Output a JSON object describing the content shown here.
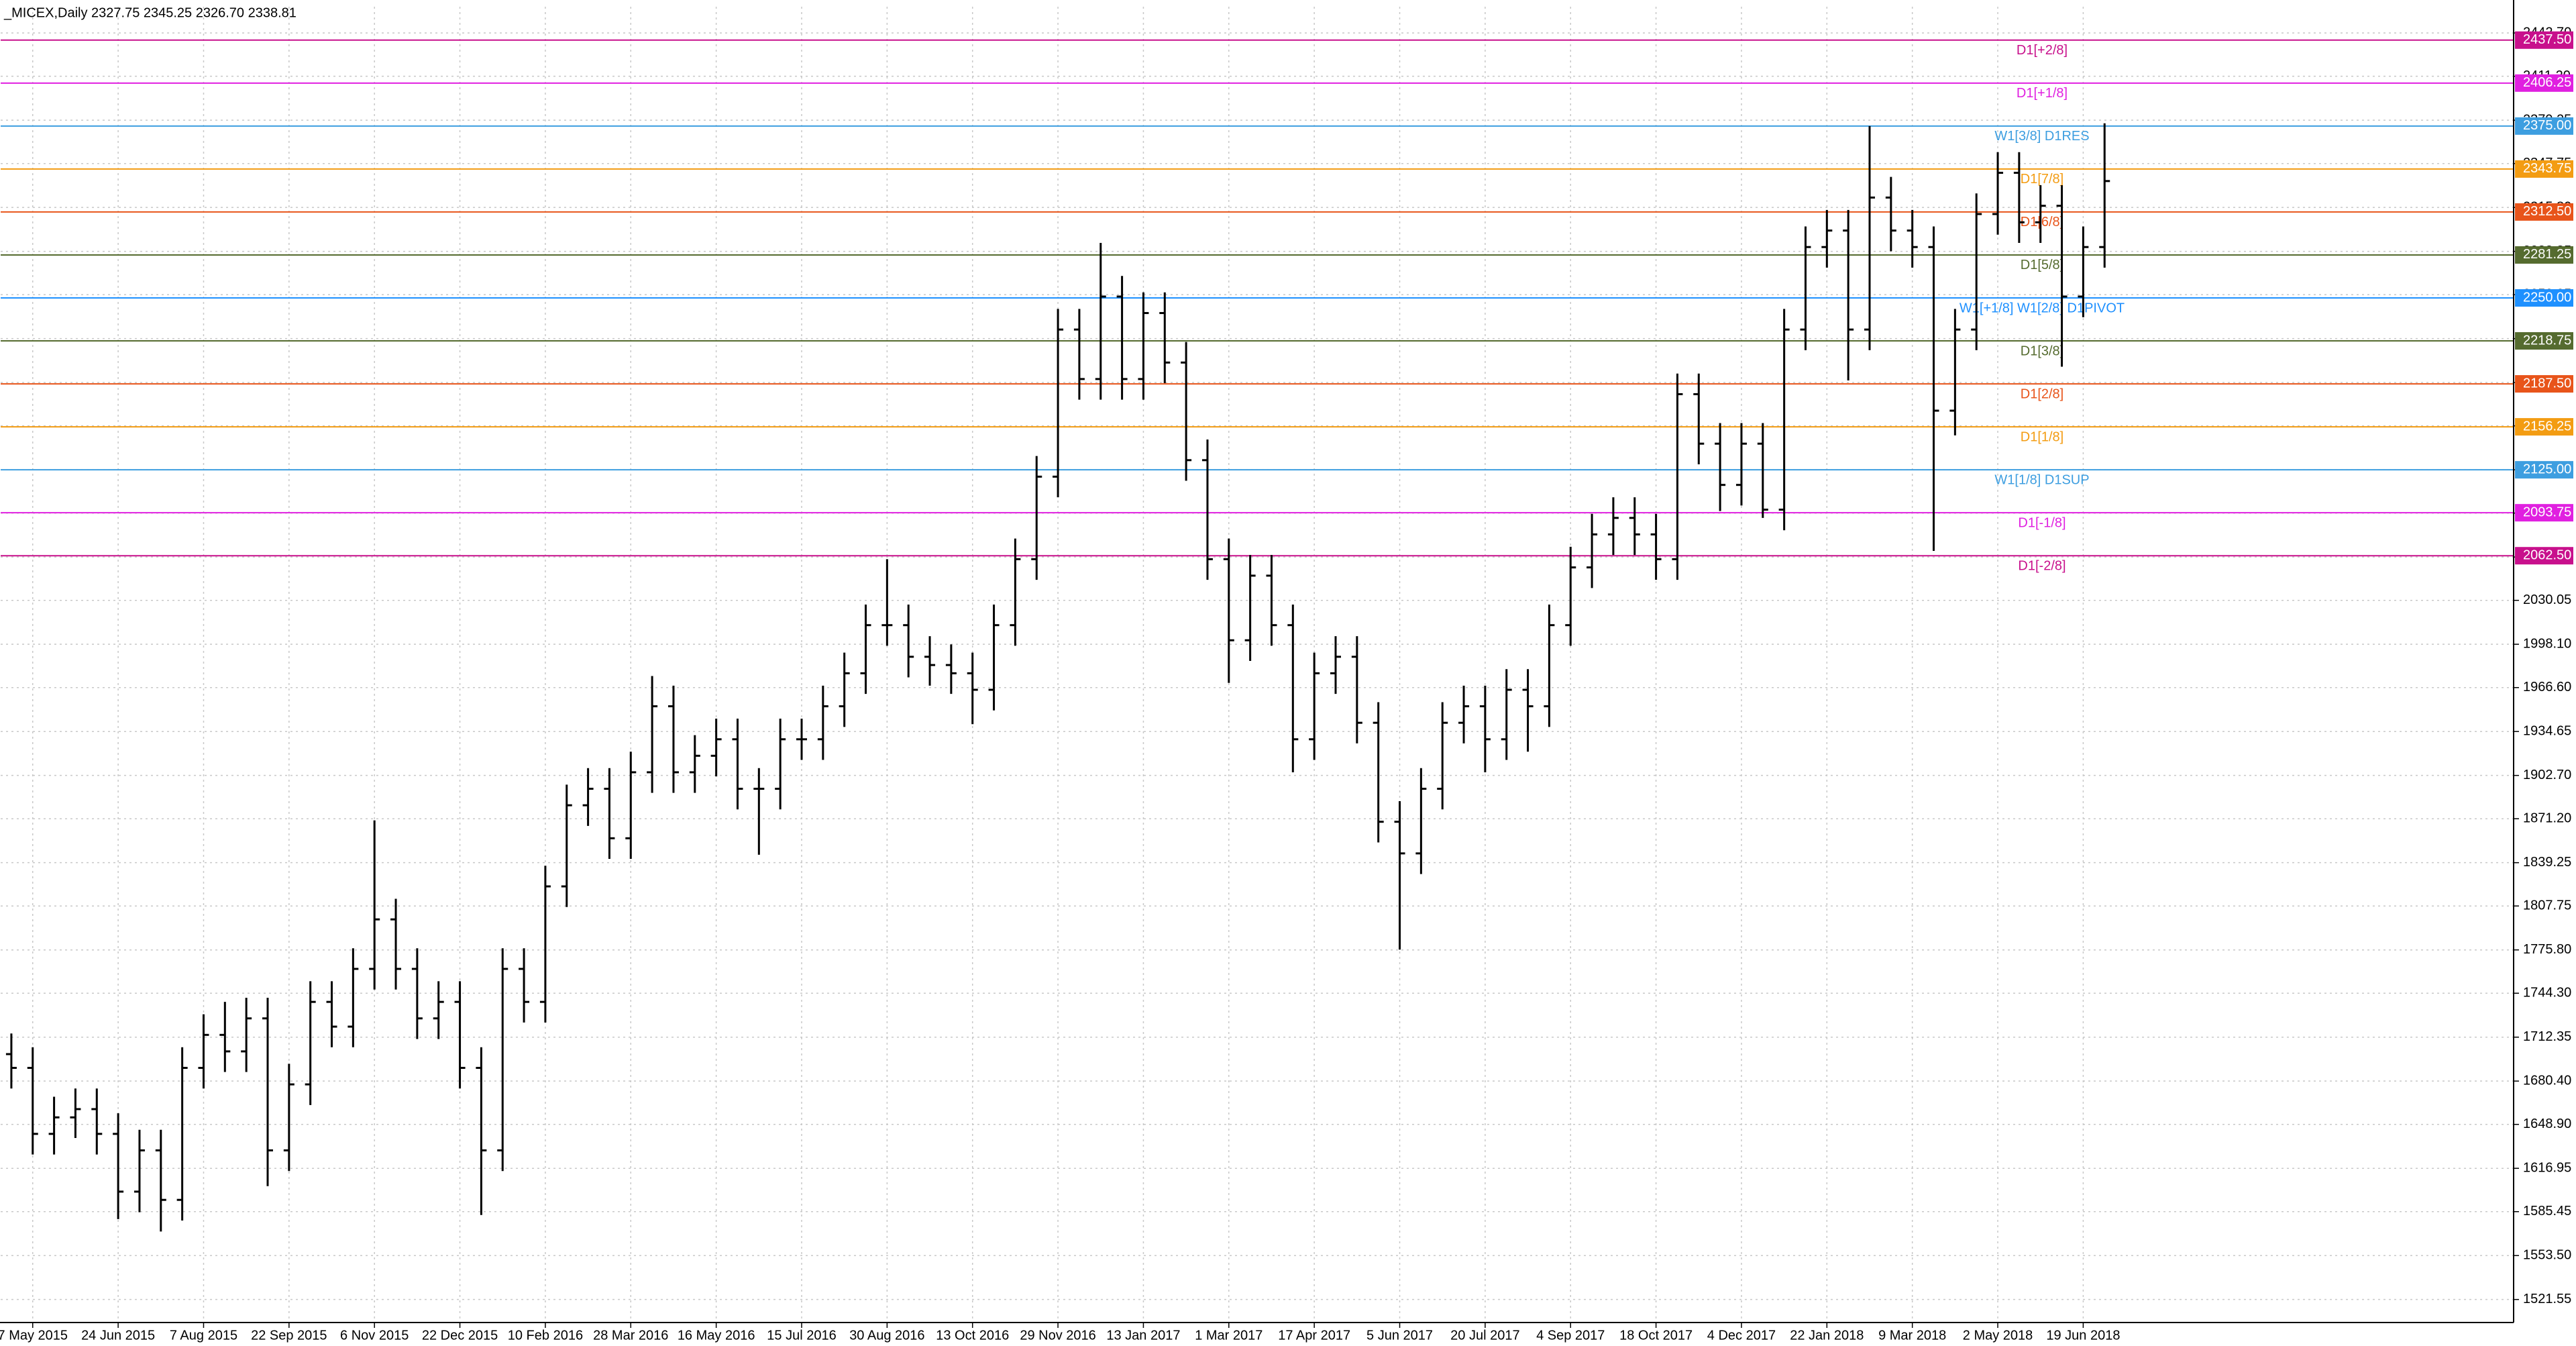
{
  "chart_data": {
    "type": "ohlc",
    "title": "_MICEX,Daily  2327.75 2345.25 2326.70 2338.81",
    "color": "#000000",
    "grid": true,
    "categories": [
      null,
      "7 May 2015",
      null,
      null,
      null,
      "24 Jun 2015",
      null,
      null,
      null,
      "7 Aug 2015",
      null,
      null,
      null,
      "22 Sep 2015",
      null,
      null,
      null,
      "6 Nov 2015",
      null,
      null,
      null,
      "22 Dec 2015",
      null,
      null,
      null,
      "10 Feb 2016",
      null,
      null,
      null,
      "28 Mar 2016",
      null,
      null,
      null,
      "16 May 2016",
      null,
      null,
      null,
      "15 Jul 2016",
      null,
      null,
      null,
      "30 Aug 2016",
      null,
      null,
      null,
      "13 Oct 2016",
      null,
      null,
      null,
      "29 Nov 2016",
      null,
      null,
      null,
      "13 Jan 2017",
      null,
      null,
      null,
      "1 Mar 2017",
      null,
      null,
      null,
      "17 Apr 2017",
      null,
      null,
      null,
      "5 Jun 2017",
      null,
      null,
      null,
      "20 Jul 2017",
      null,
      null,
      null,
      "4 Sep 2017",
      null,
      null,
      null,
      "18 Oct 2017",
      null,
      null,
      null,
      "4 Dec 2017",
      null,
      null,
      null,
      "22 Jan 2018",
      null,
      null,
      null,
      "9 Mar 2018",
      null,
      null,
      null,
      "2 May 2018",
      null,
      null,
      null,
      "19 Jun 2018",
      null
    ],
    "open": [
      1700,
      1690,
      1642,
      1654,
      1660,
      1642,
      1600,
      1630,
      1594,
      1690,
      1714,
      1702,
      1726,
      1630,
      1678,
      1738,
      1720,
      1762,
      1798,
      1762,
      1726,
      1738,
      1690,
      1630,
      1762,
      1738,
      1822,
      1881,
      1893,
      1857,
      1905,
      1953,
      1905,
      1917,
      1929,
      1893,
      1893,
      1929,
      1929,
      1953,
      1977,
      2012,
      2012,
      1989,
      1983,
      1977,
      1965,
      2012,
      2060,
      2120,
      2227,
      2191,
      2251,
      2191,
      2239,
      2203,
      2132,
      2060,
      2001,
      2048,
      2012,
      1929,
      1977,
      1989,
      1941,
      1869,
      1846,
      1893,
      1941,
      1953,
      1929,
      1965,
      1953,
      2012,
      2054,
      2078,
      2090,
      2078,
      2060,
      2180,
      2144,
      2114,
      2144,
      2096,
      2227,
      2287,
      2299,
      2227,
      2323,
      2299,
      2287,
      2168,
      2227,
      2311,
      2341,
      2305,
      2317,
      2251,
      2287
    ],
    "high": [
      1715,
      1705,
      1669,
      1675,
      1675,
      1657,
      1645,
      1645,
      1705,
      1729,
      1738,
      1741,
      1741,
      1693,
      1753,
      1753,
      1777,
      1870,
      1813,
      1777,
      1753,
      1753,
      1705,
      1777,
      1777,
      1837,
      1896,
      1908,
      1908,
      1920,
      1975,
      1968,
      1932,
      1944,
      1944,
      1908,
      1944,
      1944,
      1968,
      1992,
      2027,
      2060,
      2027,
      2004,
      1998,
      1992,
      2027,
      2075,
      2135,
      2242,
      2242,
      2290,
      2266,
      2254,
      2254,
      2218,
      2147,
      2075,
      2063,
      2063,
      2027,
      1992,
      2004,
      2004,
      1956,
      1884,
      1908,
      1956,
      1968,
      1968,
      1980,
      1980,
      2027,
      2069,
      2093,
      2105,
      2105,
      2093,
      2195,
      2195,
      2159,
      2159,
      2159,
      2242,
      2302,
      2314,
      2314,
      2375,
      2338,
      2314,
      2302,
      2242,
      2326,
      2356,
      2356,
      2332,
      2332,
      2302,
      2377
    ],
    "low": [
      1675,
      1627,
      1627,
      1639,
      1627,
      1580,
      1585,
      1571,
      1579,
      1675,
      1687,
      1687,
      1604,
      1615,
      1663,
      1705,
      1705,
      1747,
      1747,
      1711,
      1711,
      1675,
      1583,
      1615,
      1723,
      1723,
      1807,
      1866,
      1842,
      1842,
      1890,
      1890,
      1890,
      1902,
      1878,
      1845,
      1878,
      1914,
      1914,
      1938,
      1962,
      1997,
      1974,
      1968,
      1962,
      1940,
      1950,
      1997,
      2045,
      2105,
      2176,
      2176,
      2176,
      2176,
      2188,
      2117,
      2045,
      1970,
      1986,
      1997,
      1905,
      1914,
      1962,
      1926,
      1854,
      1776,
      1831,
      1878,
      1926,
      1905,
      1914,
      1920,
      1938,
      1997,
      2039,
      2063,
      2063,
      2045,
      2045,
      2129,
      2095,
      2099,
      2090,
      2081,
      2212,
      2272,
      2190,
      2212,
      2284,
      2272,
      2066,
      2150,
      2212,
      2296,
      2290,
      2290,
      2200,
      2236,
      2272
    ],
    "close": [
      1690,
      1642,
      1654,
      1660,
      1642,
      1600,
      1630,
      1594,
      1690,
      1714,
      1702,
      1726,
      1630,
      1678,
      1738,
      1720,
      1762,
      1798,
      1762,
      1726,
      1738,
      1690,
      1630,
      1762,
      1738,
      1822,
      1881,
      1893,
      1857,
      1905,
      1953,
      1905,
      1917,
      1929,
      1893,
      1893,
      1929,
      1929,
      1953,
      1977,
      2012,
      2012,
      1989,
      1983,
      1977,
      1965,
      2012,
      2060,
      2120,
      2227,
      2191,
      2251,
      2191,
      2239,
      2203,
      2132,
      2060,
      2001,
      2048,
      2012,
      1929,
      1977,
      1989,
      1941,
      1869,
      1846,
      1893,
      1941,
      1953,
      1929,
      1965,
      1953,
      2012,
      2054,
      2078,
      2090,
      2078,
      2060,
      2180,
      2144,
      2114,
      2144,
      2096,
      2227,
      2287,
      2299,
      2227,
      2323,
      2299,
      2287,
      2168,
      2227,
      2311,
      2341,
      2305,
      2317,
      2251,
      2287,
      2335
    ],
    "ylim": [
      1504.8,
      2461.8
    ],
    "yticks": [
      {
        "value": 2442.7,
        "label": "2442.70"
      },
      {
        "value": 2411.2,
        "label": "2411.20"
      },
      {
        "value": 2379.25,
        "label": "2379.25"
      },
      {
        "value": 2347.75,
        "label": "2347.75"
      },
      {
        "value": 2315.8,
        "label": "2315.80"
      },
      {
        "value": 2283.85,
        "label": "2283.85"
      },
      {
        "value": 2252.35,
        "label": "2252.35"
      },
      {
        "value": 2220.4,
        "label": "2220.40"
      },
      {
        "value": 2188.45,
        "label": "2188.45"
      },
      {
        "value": 2156.95,
        "label": "2156.95"
      },
      {
        "value": 2125,
        "label": "2125.00"
      },
      {
        "value": 2093.5,
        "label": "2093.50"
      },
      {
        "value": 2061.55,
        "label": "2061.55"
      },
      {
        "value": 2030.05,
        "label": "2030.05"
      },
      {
        "value": 1998.1,
        "label": "1998.10"
      },
      {
        "value": 1966.6,
        "label": "1966.60"
      },
      {
        "value": 1934.65,
        "label": "1934.65"
      },
      {
        "value": 1902.7,
        "label": "1902.70"
      },
      {
        "value": 1871.2,
        "label": "1871.20"
      },
      {
        "value": 1839.25,
        "label": "1839.25"
      },
      {
        "value": 1807.75,
        "label": "1807.75"
      },
      {
        "value": 1775.8,
        "label": "1775.80"
      },
      {
        "value": 1744.3,
        "label": "1744.30"
      },
      {
        "value": 1712.35,
        "label": "1712.35"
      },
      {
        "value": 1680.4,
        "label": "1680.40"
      },
      {
        "value": 1648.9,
        "label": "1648.90"
      },
      {
        "value": 1616.95,
        "label": "1616.95"
      },
      {
        "value": 1585.45,
        "label": "1585.45"
      },
      {
        "value": 1553.5,
        "label": "1553.50"
      },
      {
        "value": 1521.55,
        "label": "1521.55"
      }
    ],
    "levels": [
      {
        "value": 2437.5,
        "label": "2437.50",
        "name": "D1[+2/8]",
        "color": "#c8108c"
      },
      {
        "value": 2406.25,
        "label": "2406.25",
        "name": "D1[+1/8]",
        "color": "#e020e0"
      },
      {
        "value": 2375,
        "label": "2375.00",
        "name": "W1[3/8] D1RES",
        "color": "#3d9ee0"
      },
      {
        "value": 2343.75,
        "label": "2343.75",
        "name": "D1[7/8]",
        "color": "#f39c12"
      },
      {
        "value": 2312.5,
        "label": "2312.50",
        "name": "D1[6/8]",
        "color": "#e8541a"
      },
      {
        "value": 2281.25,
        "label": "2281.25",
        "name": "D1[5/8]",
        "color": "#556b2f"
      },
      {
        "value": 2250,
        "label": "2250.00",
        "name": "W1[+1/8] W1[2/8] D1PIVOT",
        "color": "#1e90ff"
      },
      {
        "value": 2218.75,
        "label": "2218.75",
        "name": "D1[3/8]",
        "color": "#556b2f"
      },
      {
        "value": 2187.5,
        "label": "2187.50",
        "name": "D1[2/8]",
        "color": "#e8541a"
      },
      {
        "value": 2156.25,
        "label": "2156.25",
        "name": "D1[1/8]",
        "color": "#f39c12"
      },
      {
        "value": 2125,
        "label": "2125.00",
        "name": "W1[1/8] D1SUP",
        "color": "#3d9ee0"
      },
      {
        "value": 2093.75,
        "label": "2093.75",
        "name": "D1[-1/8]",
        "color": "#e020e0"
      },
      {
        "value": 2062.5,
        "label": "2062.50",
        "name": "D1[-2/8]",
        "color": "#c8108c"
      }
    ]
  }
}
